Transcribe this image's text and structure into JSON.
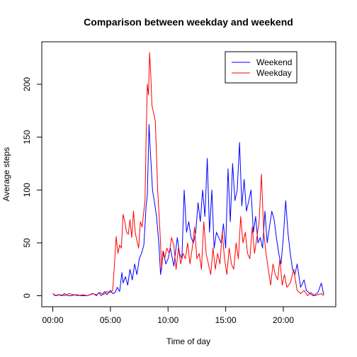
{
  "chart_data": {
    "type": "line",
    "title": "Comparison between weekday and weekend",
    "xlabel": "Time of day",
    "ylabel": "Average steps",
    "x_unit": "hours",
    "xlim": [
      0,
      24
    ],
    "ylim": [
      0,
      230
    ],
    "x_ticks": [
      {
        "value": 0,
        "label": "00:00"
      },
      {
        "value": 5,
        "label": "05:00"
      },
      {
        "value": 10,
        "label": "10:00"
      },
      {
        "value": 15,
        "label": "15:00"
      },
      {
        "value": 20,
        "label": "20:00"
      }
    ],
    "y_ticks": [
      0,
      50,
      100,
      150,
      200
    ],
    "grid": false,
    "legend_position": "top-right",
    "series": [
      {
        "name": "Weekend",
        "color": "#0000ff",
        "x": [
          0.0,
          0.2,
          0.5,
          0.8,
          1.0,
          1.3,
          1.6,
          2.0,
          2.5,
          3.0,
          3.5,
          3.8,
          4.0,
          4.2,
          4.5,
          4.7,
          5.0,
          5.2,
          5.4,
          5.6,
          5.8,
          6.0,
          6.1,
          6.3,
          6.5,
          6.7,
          6.9,
          7.1,
          7.3,
          7.5,
          7.7,
          7.9,
          8.1,
          8.2,
          8.35,
          8.45,
          8.55,
          8.65,
          8.8,
          9.0,
          9.2,
          9.35,
          9.45,
          9.6,
          9.8,
          10.0,
          10.2,
          10.5,
          10.8,
          11.0,
          11.2,
          11.4,
          11.6,
          11.8,
          12.0,
          12.2,
          12.4,
          12.6,
          12.8,
          13.0,
          13.2,
          13.4,
          13.6,
          13.8,
          14.0,
          14.2,
          14.4,
          14.6,
          14.8,
          15.0,
          15.2,
          15.4,
          15.6,
          15.8,
          16.0,
          16.2,
          16.4,
          16.6,
          16.8,
          17.0,
          17.2,
          17.4,
          17.6,
          17.8,
          18.0,
          18.2,
          18.4,
          18.6,
          18.8,
          19.0,
          19.2,
          19.4,
          19.6,
          19.8,
          20.0,
          20.2,
          20.4,
          20.6,
          20.8,
          21.0,
          21.2,
          21.5,
          21.8,
          22.0,
          22.3,
          22.6,
          23.0,
          23.3,
          23.5
        ],
        "values": [
          2,
          0,
          1,
          0,
          2,
          0,
          0,
          1,
          0,
          0,
          2,
          0,
          3,
          0,
          4,
          1,
          5,
          2,
          3,
          8,
          4,
          22,
          12,
          18,
          10,
          25,
          15,
          30,
          20,
          35,
          40,
          48,
          85,
          95,
          162,
          140,
          120,
          100,
          90,
          75,
          50,
          20,
          28,
          42,
          30,
          35,
          45,
          28,
          55,
          40,
          35,
          100,
          60,
          70,
          55,
          50,
          60,
          88,
          70,
          100,
          75,
          130,
          60,
          100,
          45,
          60,
          55,
          50,
          68,
          45,
          120,
          70,
          125,
          90,
          100,
          145,
          85,
          110,
          80,
          90,
          100,
          60,
          75,
          50,
          55,
          45,
          80,
          50,
          65,
          80,
          72,
          55,
          40,
          30,
          55,
          90,
          60,
          40,
          25,
          20,
          30,
          8,
          15,
          5,
          2,
          0,
          3,
          12,
          1
        ]
      },
      {
        "name": "Weekday",
        "color": "#ff0000",
        "x": [
          0.0,
          0.3,
          0.6,
          1.0,
          1.4,
          1.8,
          2.2,
          2.6,
          3.0,
          3.4,
          3.8,
          4.1,
          4.4,
          4.7,
          5.0,
          5.2,
          5.35,
          5.5,
          5.65,
          5.8,
          5.95,
          6.1,
          6.25,
          6.4,
          6.55,
          6.7,
          6.85,
          7.0,
          7.15,
          7.3,
          7.45,
          7.6,
          7.75,
          7.9,
          8.0,
          8.1,
          8.2,
          8.3,
          8.4,
          8.5,
          8.6,
          8.7,
          8.9,
          9.1,
          9.3,
          9.45,
          9.55,
          9.7,
          9.9,
          10.1,
          10.3,
          10.5,
          10.7,
          10.9,
          11.1,
          11.3,
          11.5,
          11.7,
          11.9,
          12.1,
          12.3,
          12.5,
          12.7,
          12.9,
          13.1,
          13.3,
          13.5,
          13.7,
          13.9,
          14.1,
          14.3,
          14.5,
          14.7,
          14.9,
          15.1,
          15.3,
          15.5,
          15.7,
          15.9,
          16.1,
          16.3,
          16.5,
          16.7,
          16.9,
          17.1,
          17.3,
          17.5,
          17.7,
          17.9,
          18.1,
          18.3,
          18.5,
          18.7,
          18.9,
          19.1,
          19.3,
          19.5,
          19.7,
          19.9,
          20.1,
          20.3,
          20.6,
          20.9,
          21.2,
          21.5,
          21.8,
          22.1,
          22.4,
          22.7,
          23.0,
          23.3,
          23.5
        ],
        "values": [
          2,
          0,
          1,
          0,
          2,
          1,
          0,
          1,
          0,
          2,
          1,
          3,
          1,
          4,
          3,
          5,
          30,
          56,
          40,
          48,
          45,
          77,
          70,
          60,
          58,
          72,
          55,
          80,
          60,
          52,
          45,
          70,
          65,
          80,
          90,
          150,
          200,
          190,
          230,
          210,
          180,
          175,
          165,
          100,
          60,
          25,
          42,
          35,
          45,
          40,
          55,
          48,
          25,
          45,
          30,
          40,
          35,
          50,
          30,
          45,
          65,
          35,
          40,
          25,
          70,
          40,
          30,
          20,
          45,
          25,
          40,
          30,
          60,
          35,
          20,
          45,
          30,
          25,
          50,
          35,
          75,
          50,
          60,
          40,
          35,
          65,
          40,
          55,
          70,
          115,
          60,
          40,
          25,
          10,
          30,
          20,
          15,
          35,
          10,
          20,
          8,
          12,
          25,
          5,
          2,
          5,
          0,
          3,
          0,
          1,
          2,
          0
        ]
      }
    ]
  }
}
